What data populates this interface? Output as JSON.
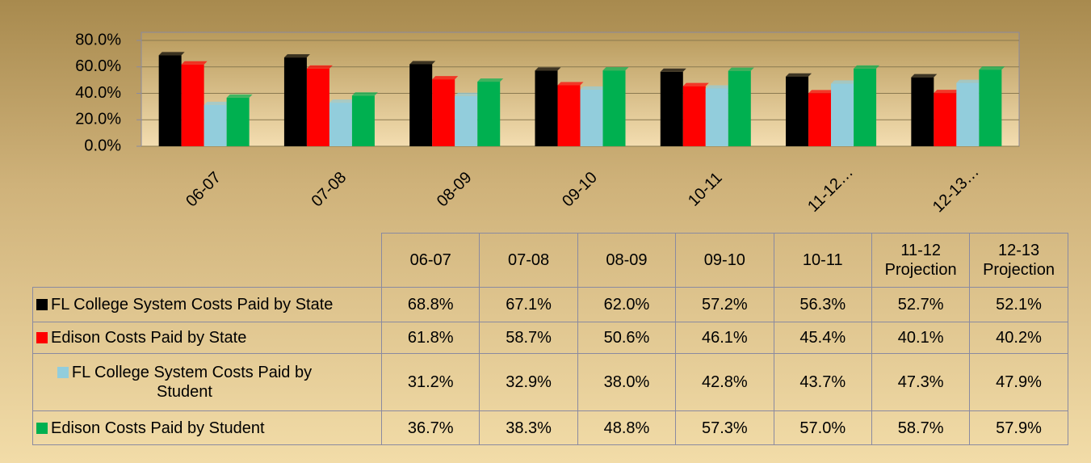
{
  "chart_data": {
    "type": "bar",
    "categories": [
      "06-07",
      "07-08",
      "08-09",
      "09-10",
      "10-11",
      "11-12…",
      "12-13…"
    ],
    "table_headers": [
      "06-07",
      "07-08",
      "08-09",
      "09-10",
      "10-11",
      "11-12 Projection",
      "12-13 Projection"
    ],
    "series": [
      {
        "name": "FL College System Costs Paid by State",
        "color": "#000000",
        "values": [
          68.8,
          67.1,
          62.0,
          57.2,
          56.3,
          52.7,
          52.1
        ],
        "value_labels": [
          "68.8%",
          "67.1%",
          "62.0%",
          "57.2%",
          "56.3%",
          "52.7%",
          "52.1%"
        ]
      },
      {
        "name": "Edison Costs Paid by State",
        "color": "#ff0000",
        "values": [
          61.8,
          58.7,
          50.6,
          46.1,
          45.4,
          40.1,
          40.2
        ],
        "value_labels": [
          "61.8%",
          "58.7%",
          "50.6%",
          "46.1%",
          "45.4%",
          "40.1%",
          "40.2%"
        ]
      },
      {
        "name": "FL College System Costs Paid by Student",
        "color": "#92cddc",
        "values": [
          31.2,
          32.9,
          38.0,
          42.8,
          43.7,
          47.3,
          47.9
        ],
        "value_labels": [
          "31.2%",
          "32.9%",
          "38.0%",
          "42.8%",
          "43.7%",
          "47.3%",
          "47.9%"
        ]
      },
      {
        "name": "Edison Costs Paid by Student",
        "color": "#00b050",
        "values": [
          36.7,
          38.3,
          48.8,
          57.3,
          57.0,
          58.7,
          57.9
        ],
        "value_labels": [
          "36.7%",
          "38.3%",
          "48.8%",
          "57.3%",
          "57.0%",
          "58.7%",
          "57.9%"
        ]
      }
    ],
    "ylim": [
      0,
      80
    ],
    "yticks": [
      {
        "value": 0,
        "label": "0.0%"
      },
      {
        "value": 20,
        "label": "20.0%"
      },
      {
        "value": 40,
        "label": "40.0%"
      },
      {
        "value": 60,
        "label": "60.0%"
      },
      {
        "value": 80,
        "label": "80.0%"
      }
    ],
    "grid": true
  }
}
